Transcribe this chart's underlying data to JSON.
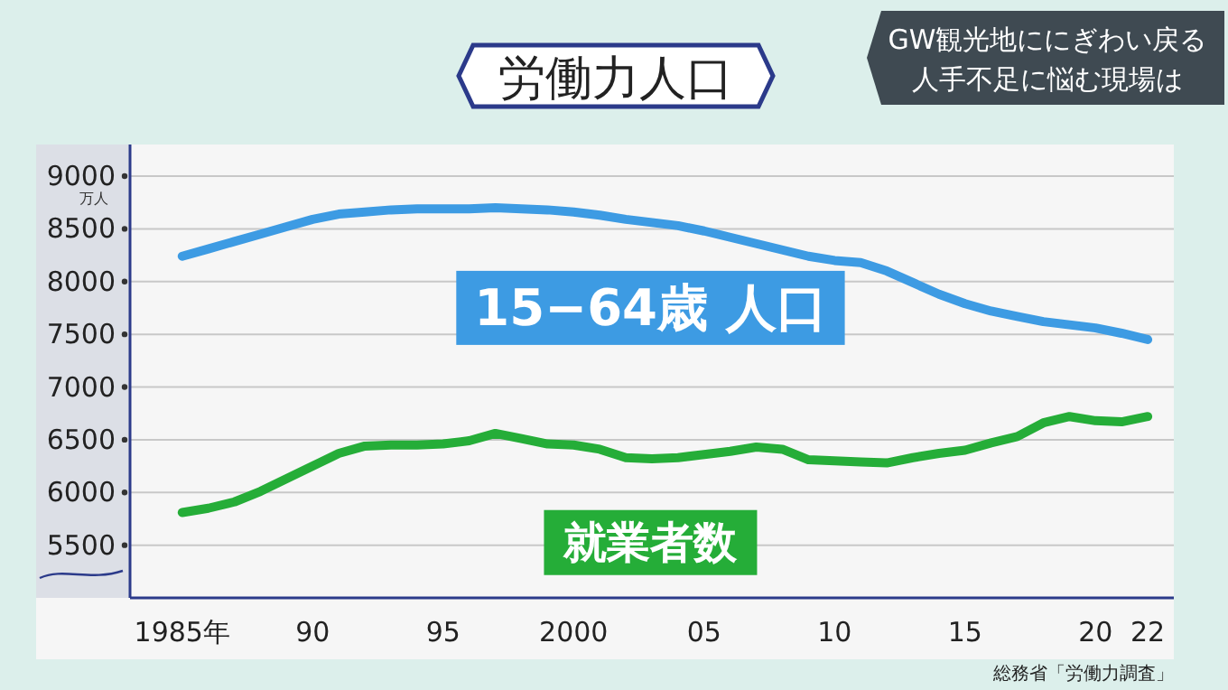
{
  "chart_data": {
    "type": "line",
    "title": "労働力人口",
    "subtitle": "GW観光地ににぎわい戻る人手不足に悩む現場は",
    "ylabel": "万人",
    "x": [
      1985,
      1986,
      1987,
      1988,
      1989,
      1990,
      1991,
      1992,
      1993,
      1994,
      1995,
      1996,
      1997,
      1998,
      1999,
      2000,
      2001,
      2002,
      2003,
      2004,
      2005,
      2006,
      2007,
      2008,
      2009,
      2010,
      2011,
      2012,
      2013,
      2014,
      2015,
      2016,
      2017,
      2018,
      2019,
      2020,
      2021,
      2022
    ],
    "series": [
      {
        "name": "15−64歳 人口",
        "color": "#3d9be3",
        "values": [
          8240,
          8310,
          8380,
          8450,
          8520,
          8590,
          8640,
          8660,
          8680,
          8690,
          8690,
          8690,
          8700,
          8690,
          8680,
          8660,
          8630,
          8590,
          8560,
          8530,
          8480,
          8420,
          8360,
          8300,
          8240,
          8200,
          8180,
          8100,
          7990,
          7880,
          7790,
          7720,
          7670,
          7620,
          7590,
          7560,
          7510,
          7450
        ]
      },
      {
        "name": "就業者数",
        "color": "#25ad38",
        "values": [
          5810,
          5850,
          5910,
          6010,
          6130,
          6250,
          6370,
          6440,
          6450,
          6450,
          6460,
          6490,
          6560,
          6510,
          6460,
          6450,
          6410,
          6330,
          6320,
          6330,
          6360,
          6390,
          6430,
          6410,
          6310,
          6300,
          6290,
          6280,
          6330,
          6370,
          6400,
          6470,
          6530,
          6660,
          6720,
          6680,
          6670,
          6720
        ]
      }
    ],
    "xlim": [
      1983,
      2023
    ],
    "xticks": [
      {
        "value": 1985,
        "label": "1985年"
      },
      {
        "value": 1990,
        "label": "90"
      },
      {
        "value": 1995,
        "label": "95"
      },
      2000,
      {
        "value": 2005,
        "label": "05"
      },
      {
        "value": 2010,
        "label": "10"
      },
      {
        "value": 2015,
        "label": "15"
      },
      {
        "value": 2020,
        "label": "20"
      },
      {
        "value": 2022,
        "label": "22"
      }
    ],
    "ylim": [
      5000,
      9300
    ],
    "yticks": [
      5500,
      6000,
      6500,
      7000,
      7500,
      8000,
      8500,
      9000
    ],
    "grid": "y",
    "marker": "none",
    "line_style": "solid",
    "annotations": [
      "総務省「労働力調査」"
    ]
  }
}
